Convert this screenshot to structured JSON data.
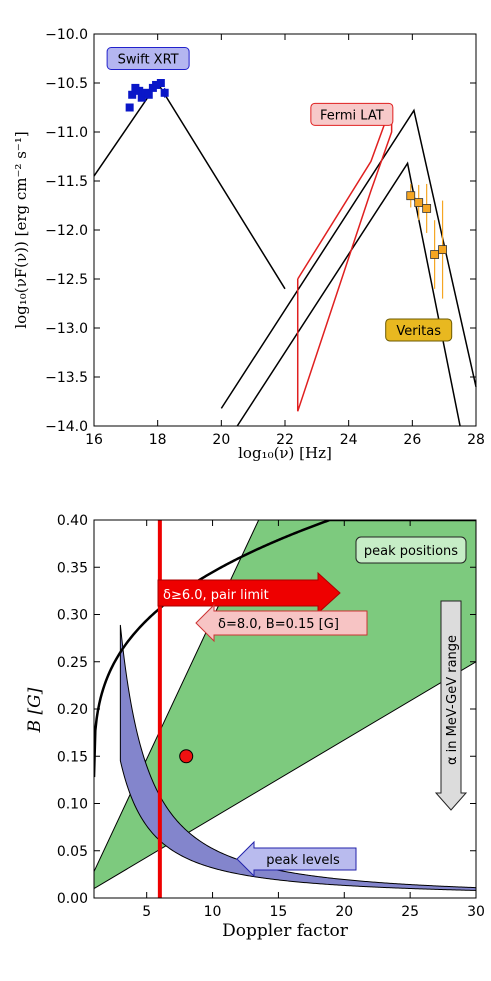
{
  "chart_data": [
    {
      "type": "line",
      "xlabel": "log₁₀(ν) [Hz]",
      "ylabel": "log₁₀(νF(ν)) [erg cm⁻² s⁻¹]",
      "xlim": [
        16,
        28
      ],
      "ylim": [
        -14.0,
        -10.0
      ],
      "xticks": [
        "16",
        "18",
        "20",
        "22",
        "24",
        "26",
        "28"
      ],
      "yticks": [
        "−10.0",
        "−10.5",
        "−11.0",
        "−11.5",
        "−12.0",
        "−12.5",
        "−13.0",
        "−13.5",
        "−14.0"
      ],
      "grid": false,
      "series": [
        {
          "style": "black-line",
          "points": [
            [
              16.0,
              -11.45
            ],
            [
              18.0,
              -10.5
            ],
            [
              22.0,
              -12.6
            ]
          ]
        },
        {
          "style": "black-line",
          "points": [
            [
              20.0,
              -13.82
            ],
            [
              26.05,
              -10.78
            ],
            [
              28.0,
              -13.6
            ]
          ]
        },
        {
          "style": "black-line",
          "points": [
            [
              20.5,
              -14.0
            ],
            [
              25.85,
              -11.32
            ],
            [
              27.5,
              -14.0
            ]
          ]
        },
        {
          "style": "red-bowtie",
          "points": [
            [
              22.4,
              -12.5
            ],
            [
              24.7,
              -11.3
            ],
            [
              25.35,
              -10.72
            ],
            [
              25.35,
              -11.0
            ],
            [
              24.7,
              -11.6
            ],
            [
              22.4,
              -13.85
            ],
            [
              22.4,
              -12.5
            ]
          ]
        }
      ],
      "markers": [
        {
          "group": "swift",
          "color": "#0a17c8",
          "points": [
            [
              17.12,
              -10.75
            ],
            [
              17.2,
              -10.62
            ],
            [
              17.3,
              -10.55
            ],
            [
              17.42,
              -10.58
            ],
            [
              17.5,
              -10.65
            ],
            [
              17.62,
              -10.6
            ],
            [
              17.72,
              -10.62
            ],
            [
              17.85,
              -10.55
            ],
            [
              17.95,
              -10.52
            ],
            [
              18.1,
              -10.5
            ],
            [
              18.22,
              -10.6
            ]
          ],
          "errors": [
            0.03,
            0.03,
            0.03,
            0.03,
            0.03,
            0.03,
            0.03,
            0.03,
            0.03,
            0.03,
            0.05
          ]
        },
        {
          "group": "veritas",
          "color": "#f5a623",
          "points": [
            [
              25.95,
              -11.65
            ],
            [
              26.2,
              -11.72
            ],
            [
              26.45,
              -11.78
            ],
            [
              26.7,
              -12.25
            ],
            [
              26.95,
              -12.2
            ]
          ],
          "errors": [
            0.12,
            0.18,
            0.25,
            0.35,
            0.5
          ]
        }
      ],
      "annotations": [
        {
          "text": "Swift XRT",
          "x": 17.7,
          "y": -10.25,
          "fill": "#b4b6f0",
          "stroke": "#2222cc"
        },
        {
          "text": "Fermi LAT",
          "x": 24.1,
          "y": -10.82,
          "fill": "#f7c9c9",
          "stroke": "#e02020"
        },
        {
          "text": "Veritas",
          "x": 26.2,
          "y": -13.02,
          "fill": "#e8b820",
          "stroke": "#6b5a00"
        }
      ]
    },
    {
      "type": "area",
      "xlabel": "Doppler factor",
      "ylabel": "B [G]",
      "xlim": [
        1,
        30
      ],
      "ylim": [
        0.0,
        0.4
      ],
      "xticks": [
        "5",
        "10",
        "15",
        "20",
        "25",
        "30"
      ],
      "yticks": [
        "0.00",
        "0.05",
        "0.10",
        "0.15",
        "0.20",
        "0.25",
        "0.30",
        "0.35",
        "0.40"
      ],
      "grid": false,
      "green_band": {
        "color": "#7dca7e",
        "lower": [
          [
            1.0,
            0.01
          ],
          [
            30.0,
            0.25
          ]
        ],
        "upper": [
          [
            1.0,
            0.028
          ],
          [
            13.5,
            0.4
          ]
        ],
        "upper_right": [
          [
            30.0,
            0.4
          ]
        ]
      },
      "blue_band": {
        "color": "#8385cc",
        "outer": {
          "coef": 1.375,
          "power": -1.42
        },
        "inner": {
          "coef": 0.58,
          "power": -1.26
        },
        "xmin": 3.0,
        "xmax": 30.0
      },
      "black_curve": {
        "coef": 0.2,
        "power": 0.2,
        "xmin": 1.0,
        "xmax": 30.0,
        "offset_x": 0.95,
        "scale": 0.11,
        "base": 0.0
      },
      "red_line": {
        "x": 6.0,
        "color": "#ee0000"
      },
      "point": {
        "x": 8.0,
        "y": 0.15,
        "color": "#ee1111"
      },
      "annotations": [
        {
          "text": "peak positions",
          "fill": "#c6edc6",
          "stroke": "#222222"
        },
        {
          "text": "δ≥6.0, pair limit",
          "fill": "#ee0000",
          "stroke": "#aa0000",
          "text_color": "#ffffff"
        },
        {
          "text": "δ=8.0, B=0.15 [G]",
          "fill": "#f7c4c4",
          "stroke": "#cc3333"
        },
        {
          "text": "α in MeV-GeV range",
          "fill": "#dcdcdc",
          "stroke": "#222222"
        },
        {
          "text": "peak levels",
          "fill": "#b9bbee",
          "stroke": "#2222aa"
        }
      ]
    }
  ]
}
